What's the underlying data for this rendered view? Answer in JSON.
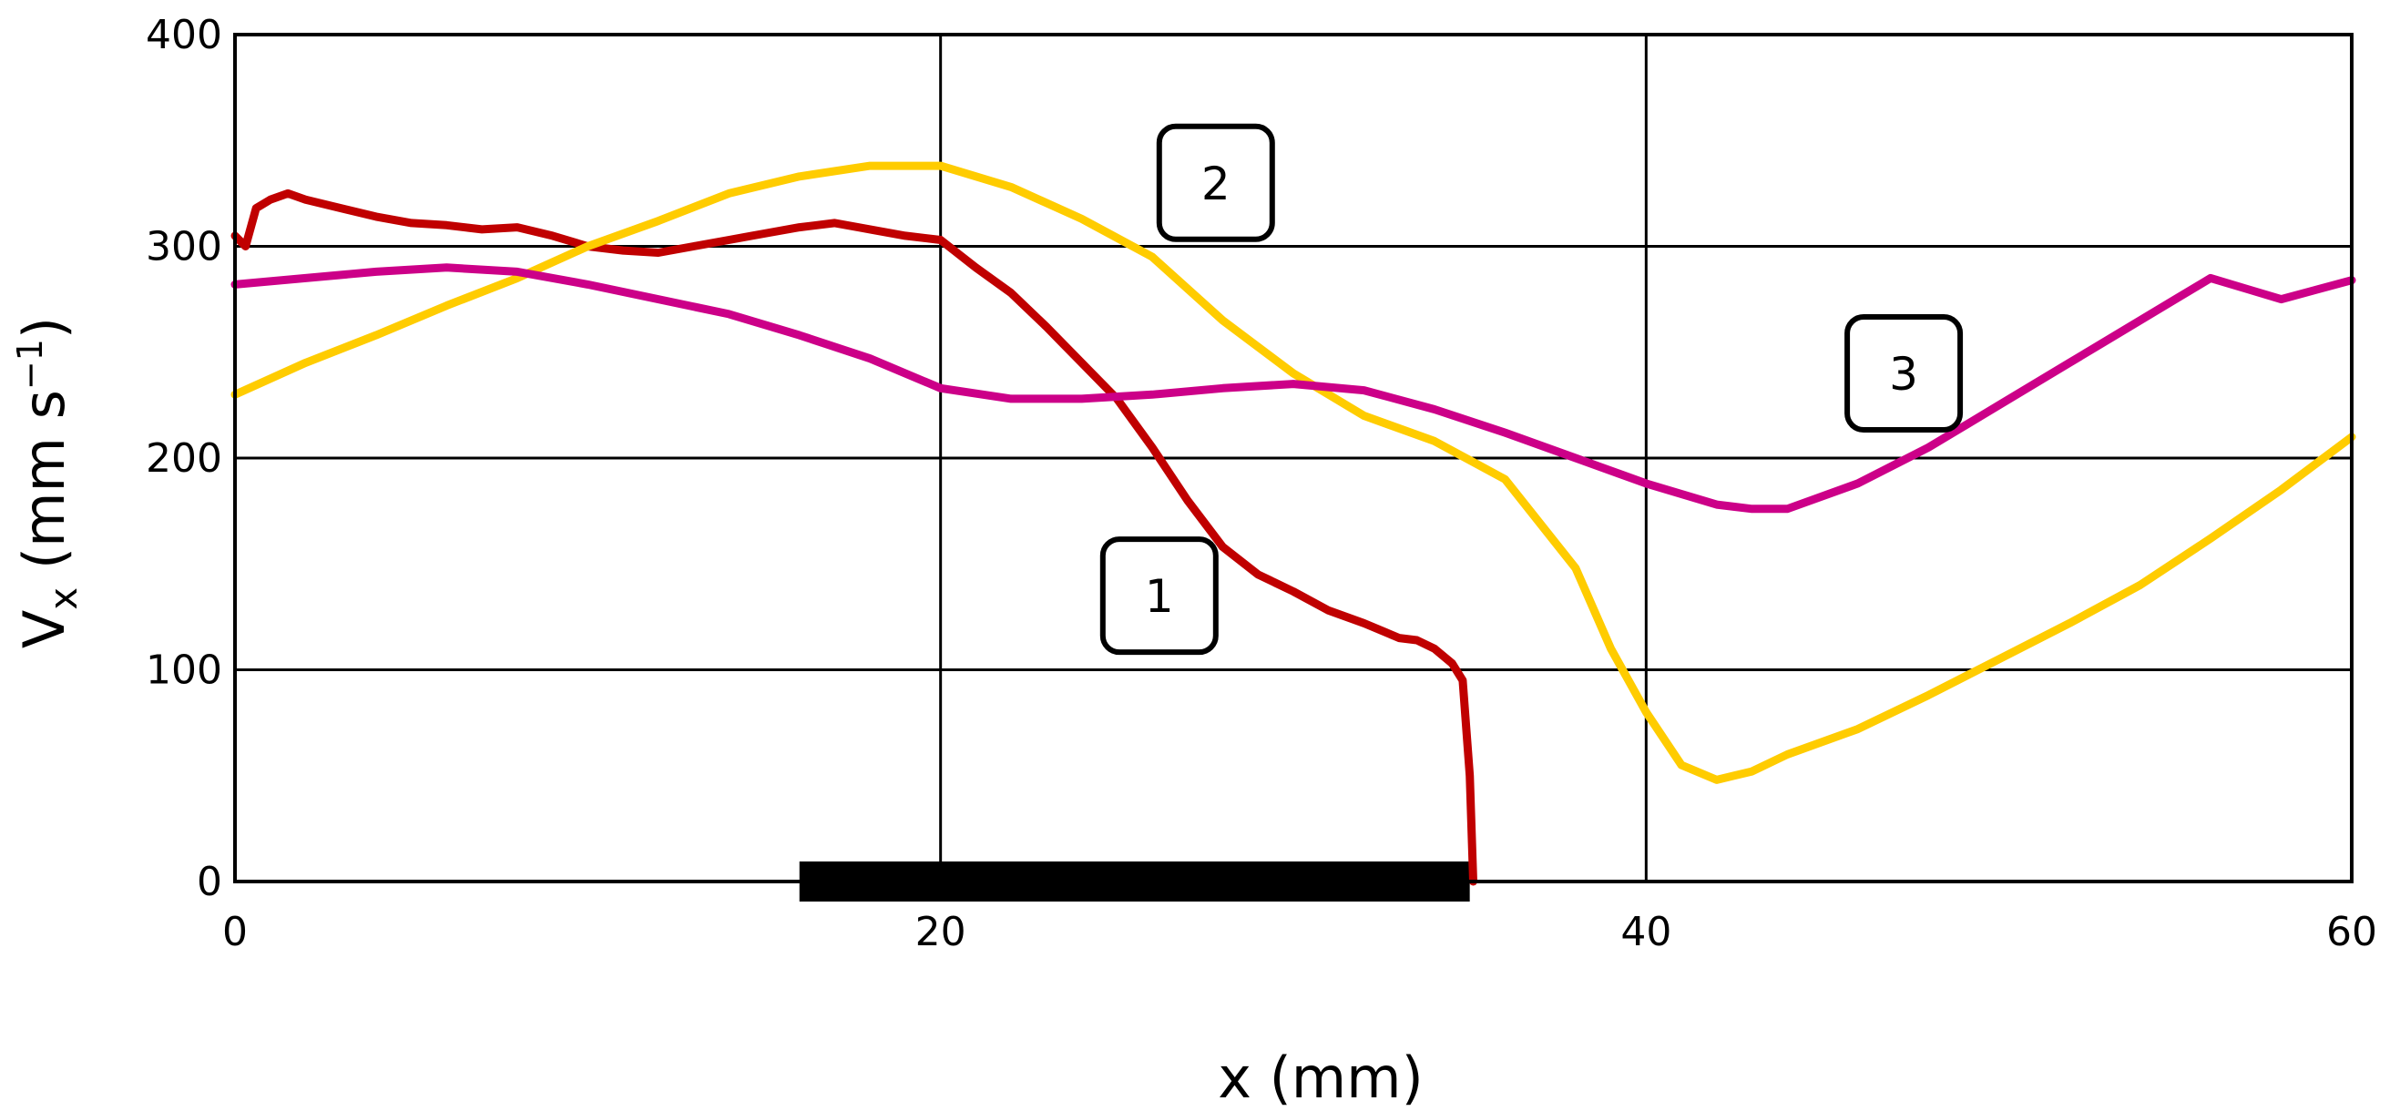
{
  "chart_data": {
    "type": "line",
    "title": "",
    "xlabel": "x (mm)",
    "ylabel": "Vx (mm s⁻¹)",
    "ylabel_parts": {
      "base": "V",
      "sub": "x",
      "unit_open": " (mm s",
      "sup": "−1",
      "unit_close": ")"
    },
    "xlim": [
      0,
      60
    ],
    "ylim": [
      0,
      400
    ],
    "xticks": [
      0,
      20,
      40,
      60
    ],
    "yticks": [
      0,
      100,
      200,
      300,
      400
    ],
    "grid": true,
    "legend": "none",
    "bar": {
      "x_start": 16,
      "x_end": 35,
      "color": "#000000"
    },
    "series": [
      {
        "name": "1",
        "color": "#c00000",
        "x": [
          0,
          0.3,
          0.6,
          1.0,
          1.5,
          2,
          3,
          4,
          5,
          6,
          7,
          8,
          9,
          10,
          11,
          12,
          13,
          14,
          15,
          16,
          17,
          18,
          19,
          20,
          21,
          22,
          23,
          24,
          25,
          26,
          27,
          28,
          29,
          30,
          31,
          32,
          33,
          33.5,
          34,
          34.5,
          34.8,
          35,
          35.1
        ],
        "y": [
          305,
          300,
          318,
          322,
          325,
          322,
          318,
          314,
          311,
          310,
          308,
          309,
          305,
          300,
          298,
          297,
          300,
          303,
          306,
          309,
          311,
          308,
          305,
          303,
          290,
          278,
          262,
          245,
          228,
          205,
          180,
          158,
          145,
          137,
          128,
          122,
          115,
          114,
          110,
          103,
          95,
          50,
          0
        ]
      },
      {
        "name": "2",
        "color": "#ffcc00",
        "x": [
          0,
          2,
          4,
          6,
          8,
          10,
          12,
          14,
          16,
          18,
          20,
          22,
          24,
          26,
          28,
          30,
          32,
          34,
          36,
          38,
          39,
          40,
          41,
          42,
          43,
          44,
          46,
          48,
          50,
          52,
          54,
          56,
          58,
          60
        ],
        "y": [
          230,
          245,
          258,
          272,
          285,
          300,
          312,
          325,
          333,
          338,
          338,
          328,
          313,
          295,
          265,
          240,
          220,
          208,
          190,
          148,
          110,
          80,
          55,
          48,
          52,
          60,
          72,
          88,
          105,
          122,
          140,
          162,
          185,
          210
        ]
      },
      {
        "name": "3",
        "color": "#cc0088",
        "x": [
          0,
          2,
          4,
          6,
          8,
          10,
          12,
          14,
          16,
          18,
          20,
          22,
          24,
          26,
          28,
          30,
          32,
          34,
          36,
          38,
          40,
          42,
          43,
          44,
          46,
          48,
          50,
          52,
          54,
          55,
          56,
          57,
          58,
          60
        ],
        "y": [
          282,
          285,
          288,
          290,
          288,
          282,
          275,
          268,
          258,
          247,
          233,
          228,
          228,
          230,
          233,
          235,
          232,
          223,
          212,
          200,
          188,
          178,
          176,
          176,
          188,
          205,
          225,
          245,
          265,
          275,
          285,
          280,
          275,
          284
        ]
      }
    ],
    "annotations": [
      {
        "text": "1",
        "x": 26.2,
        "y": 135
      },
      {
        "text": "2",
        "x": 27.8,
        "y": 330
      },
      {
        "text": "3",
        "x": 47.3,
        "y": 240
      }
    ]
  }
}
